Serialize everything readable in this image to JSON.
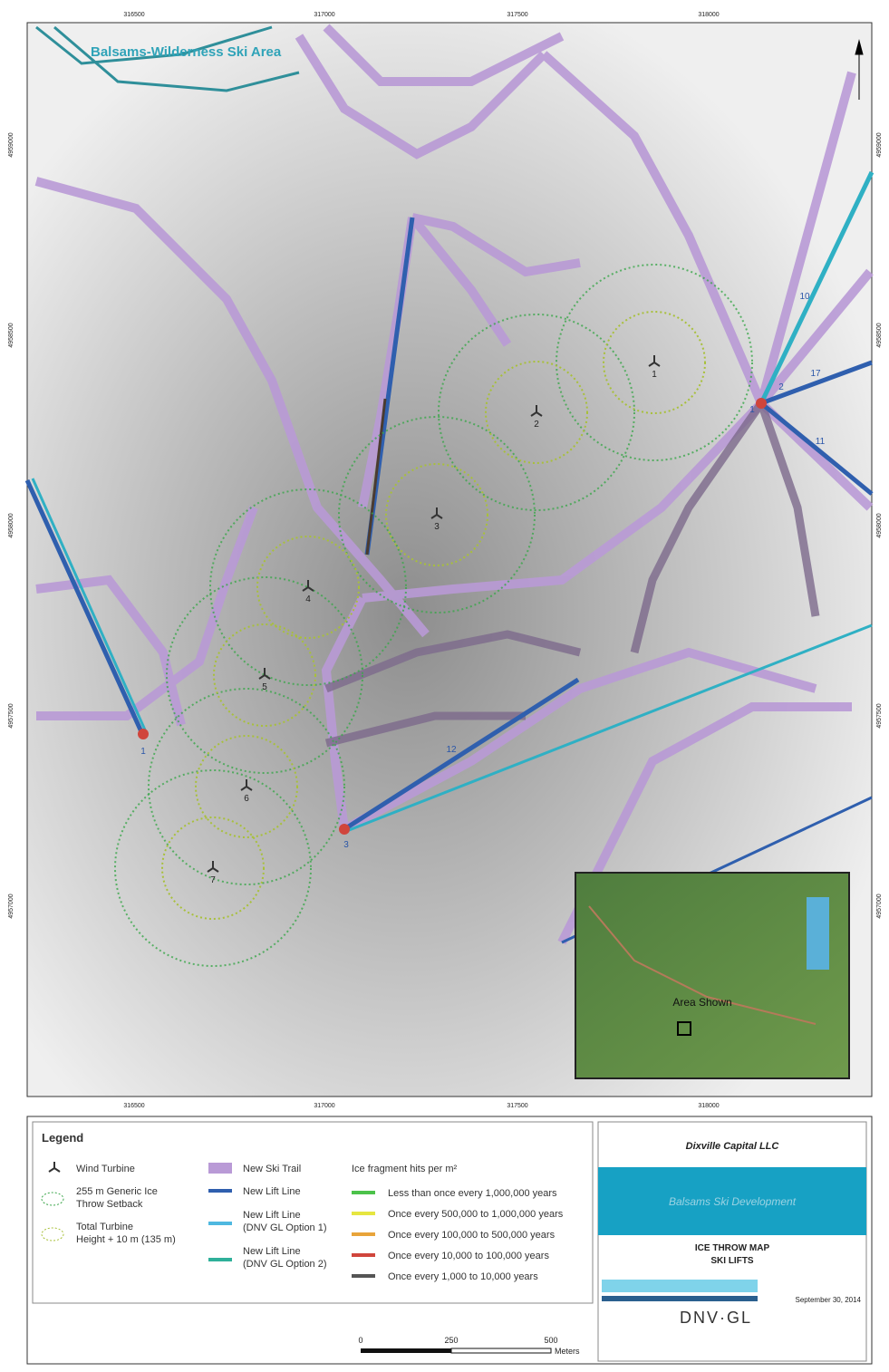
{
  "map": {
    "area_label": "Balsams-Wilderness Ski Area",
    "x_ticks": [
      "316500",
      "317000",
      "317500",
      "318000"
    ],
    "y_ticks": [
      "4959000",
      "4958500",
      "4958000",
      "4957500",
      "4957000"
    ],
    "turbines": [
      "1",
      "2",
      "3",
      "4",
      "5",
      "6",
      "7"
    ],
    "lift_labels": [
      "10",
      "17",
      "11",
      "12",
      "1",
      "2",
      "1",
      "3"
    ]
  },
  "inset": {
    "label": "Area Shown"
  },
  "legend": {
    "title": "Legend",
    "wind_turbine": "Wind Turbine",
    "setback_255": "255 m Generic Ice Throw Setback",
    "setback_135": "Total Turbine Height + 10 m (135 m)",
    "ski_trail": "New Ski Trail",
    "lift_line": "New Lift Line",
    "lift_option1": "New Lift Line (DNV GL Option 1)",
    "lift_option2": "New Lift Line (DNV GL Option 2)",
    "ice_title": "Ice fragment hits per m²",
    "ice_classes": [
      "Less than once every 1,000,000 years",
      "Once every 500,000 to 1,000,000 years",
      "Once every 100,000 to 500,000 years",
      "Once every 10,000 to 100,000 years",
      "Once every 1,000 to 10,000 years"
    ]
  },
  "title_block": {
    "client": "Dixville Capital LLC",
    "project": "Balsams Ski Development",
    "map_title": "ICE THROW MAP SKI LIFTS",
    "date": "September 30, 2014",
    "logo": "DNV·GL"
  },
  "scale_bar": {
    "labels": [
      "0",
      "250",
      "500"
    ],
    "unit": "Meters"
  }
}
